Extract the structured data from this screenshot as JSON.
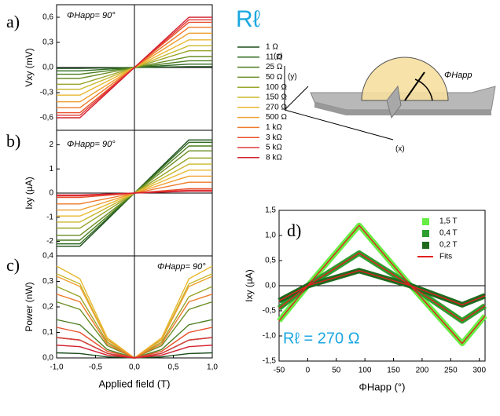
{
  "chart_data": [
    {
      "type": "line",
      "panel_label": "a)",
      "annotation": "ΦHapp= 90°",
      "y_label": "Vxy (mV)",
      "legend_title": "Rℓ",
      "x": [
        -1,
        -0.7,
        0,
        0.7,
        1
      ],
      "xlim": [
        -1,
        1
      ],
      "ylim": [
        -0.75,
        0.75
      ],
      "yticks": [
        {
          "value": -0.6,
          "label": "-0,6"
        },
        {
          "value": -0.3,
          "label": "-0,3"
        },
        {
          "value": 0,
          "label": "0,0"
        },
        {
          "value": 0.3,
          "label": "0,3"
        },
        {
          "value": 0.6,
          "label": "0,6"
        }
      ],
      "zero_lines": [
        "x",
        "y"
      ],
      "series": [
        {
          "name": "1 Ω",
          "color": "#1a4d1a",
          "values": [
            -0.01,
            -0.01,
            0,
            0.01,
            0.01
          ]
        },
        {
          "name": "11 Ω",
          "color": "#2e6b1e",
          "values": [
            -0.04,
            -0.04,
            0,
            0.04,
            0.04
          ]
        },
        {
          "name": "25 Ω",
          "color": "#4a7d1f",
          "values": [
            -0.08,
            -0.08,
            0,
            0.08,
            0.08
          ]
        },
        {
          "name": "50 Ω",
          "color": "#6b8e23",
          "values": [
            -0.13,
            -0.13,
            0,
            0.13,
            0.13
          ]
        },
        {
          "name": "100 Ω",
          "color": "#9aa52a",
          "values": [
            -0.2,
            -0.2,
            0,
            0.2,
            0.2
          ]
        },
        {
          "name": "150 Ω",
          "color": "#c9b82c",
          "values": [
            -0.26,
            -0.26,
            0,
            0.26,
            0.26
          ]
        },
        {
          "name": "270 Ω",
          "color": "#e8b830",
          "values": [
            -0.33,
            -0.33,
            0,
            0.33,
            0.33
          ]
        },
        {
          "name": "500 Ω",
          "color": "#f0a030",
          "values": [
            -0.41,
            -0.41,
            0,
            0.41,
            0.41
          ]
        },
        {
          "name": "1 kΩ",
          "color": "#ee7a2a",
          "values": [
            -0.48,
            -0.48,
            0,
            0.48,
            0.48
          ]
        },
        {
          "name": "3 kΩ",
          "color": "#e8502a",
          "values": [
            -0.54,
            -0.54,
            0,
            0.54,
            0.54
          ]
        },
        {
          "name": "5 kΩ",
          "color": "#e03a3a",
          "values": [
            -0.57,
            -0.57,
            0,
            0.57,
            0.57
          ]
        },
        {
          "name": "8 kΩ",
          "color": "#d42030",
          "values": [
            -0.6,
            -0.6,
            0,
            0.6,
            0.6
          ]
        }
      ]
    },
    {
      "type": "line",
      "panel_label": "b)",
      "annotation": "ΦHapp= 90°",
      "y_label": "Ixy (µA)",
      "x": [
        -1,
        -0.7,
        0,
        0.7,
        1
      ],
      "xlim": [
        -1,
        1
      ],
      "ylim": [
        -2.6,
        2.6
      ],
      "yticks": [
        -2,
        -1,
        0,
        1,
        2
      ],
      "zero_lines": [
        "x",
        "y"
      ],
      "series": [
        {
          "color": "#1a4d1a",
          "values": [
            -2.2,
            -2.2,
            0,
            2.2,
            2.2
          ]
        },
        {
          "color": "#2e6b1e",
          "values": [
            -2.1,
            -2.1,
            0,
            2.1,
            2.1
          ]
        },
        {
          "color": "#4a7d1f",
          "values": [
            -1.95,
            -1.95,
            0,
            1.95,
            1.95
          ]
        },
        {
          "color": "#6b8e23",
          "values": [
            -1.75,
            -1.75,
            0,
            1.75,
            1.75
          ]
        },
        {
          "color": "#9aa52a",
          "values": [
            -1.45,
            -1.45,
            0,
            1.45,
            1.45
          ]
        },
        {
          "color": "#c9b82c",
          "values": [
            -1.2,
            -1.2,
            0,
            1.2,
            1.2
          ]
        },
        {
          "color": "#e8b830",
          "values": [
            -0.95,
            -0.95,
            0,
            0.95,
            0.95
          ]
        },
        {
          "color": "#f0a030",
          "values": [
            -0.7,
            -0.7,
            0,
            0.7,
            0.7
          ]
        },
        {
          "color": "#ee7a2a",
          "values": [
            -0.45,
            -0.45,
            0,
            0.45,
            0.45
          ]
        },
        {
          "color": "#e8502a",
          "values": [
            -0.18,
            -0.18,
            0,
            0.18,
            0.18
          ]
        },
        {
          "color": "#e03a3a",
          "values": [
            -0.12,
            -0.12,
            0,
            0.12,
            0.12
          ]
        },
        {
          "color": "#d42030",
          "values": [
            -0.08,
            -0.08,
            0,
            0.08,
            0.08
          ]
        }
      ]
    },
    {
      "type": "line",
      "panel_label": "c)",
      "annotation": "ΦHapp= 90°",
      "y_label": "Power (nW)",
      "x_label": "Applied field (T)",
      "x": [
        -1,
        -0.7,
        -0.35,
        0,
        0.35,
        0.7,
        1
      ],
      "xlim": [
        -1,
        1
      ],
      "ylim": [
        0,
        0.4
      ],
      "xticks": [
        {
          "value": -1,
          "label": "-1,0"
        },
        {
          "value": -0.5,
          "label": "-0,5"
        },
        {
          "value": 0,
          "label": "0,0"
        },
        {
          "value": 0.5,
          "label": "0,5"
        },
        {
          "value": 1,
          "label": "1,0"
        }
      ],
      "yticks": [
        {
          "value": 0,
          "label": "0,0"
        },
        {
          "value": 0.1,
          "label": "0,1"
        },
        {
          "value": 0.2,
          "label": "0,2"
        },
        {
          "value": 0.3,
          "label": "0,3"
        },
        {
          "value": 0.4,
          "label": "0,4"
        }
      ],
      "zero_lines": [
        "x"
      ],
      "series": [
        {
          "color": "#1a4d1a",
          "values": [
            0.02,
            0.017,
            0.004,
            0,
            0.004,
            0.017,
            0.02
          ]
        },
        {
          "color": "#2e6b1e",
          "values": [
            0.08,
            0.07,
            0.018,
            0,
            0.018,
            0.07,
            0.08
          ]
        },
        {
          "color": "#4a7d1f",
          "values": [
            0.15,
            0.13,
            0.033,
            0,
            0.033,
            0.13,
            0.15
          ]
        },
        {
          "color": "#6b8e23",
          "values": [
            0.22,
            0.19,
            0.048,
            0,
            0.048,
            0.19,
            0.22
          ]
        },
        {
          "color": "#9aa52a",
          "values": [
            0.28,
            0.24,
            0.062,
            0,
            0.062,
            0.24,
            0.28
          ]
        },
        {
          "color": "#c9b82c",
          "values": [
            0.33,
            0.29,
            0.073,
            0,
            0.073,
            0.29,
            0.33
          ]
        },
        {
          "color": "#e8b830",
          "values": [
            0.36,
            0.31,
            0.079,
            0,
            0.079,
            0.31,
            0.36
          ]
        },
        {
          "color": "#f0a030",
          "values": [
            0.32,
            0.28,
            0.07,
            0,
            0.07,
            0.28,
            0.32
          ]
        },
        {
          "color": "#ee7a2a",
          "values": [
            0.25,
            0.22,
            0.055,
            0,
            0.055,
            0.22,
            0.25
          ]
        },
        {
          "color": "#e8502a",
          "values": [
            0.12,
            0.1,
            0.026,
            0,
            0.026,
            0.1,
            0.12
          ]
        },
        {
          "color": "#e03a3a",
          "values": [
            0.08,
            0.07,
            0.018,
            0,
            0.018,
            0.07,
            0.08
          ]
        },
        {
          "color": "#d42030",
          "values": [
            0.05,
            0.044,
            0.011,
            0,
            0.011,
            0.044,
            0.05
          ]
        }
      ]
    },
    {
      "type": "line",
      "panel_label": "d)",
      "annotation": "Rℓ = 270 Ω",
      "y_label": "Ixy (µA)",
      "x_label": "ΦHapp   (°)",
      "x": [
        -50,
        0,
        90,
        180,
        270,
        310
      ],
      "xlim": [
        -50,
        310
      ],
      "ylim": [
        -1.5,
        1.5
      ],
      "xticks": [
        -50,
        0,
        50,
        100,
        150,
        200,
        250,
        300
      ],
      "yticks": [
        {
          "value": -1.5,
          "label": "-1,5"
        },
        {
          "value": -1,
          "label": "-1,0"
        },
        {
          "value": -0.5,
          "label": "-0,5"
        },
        {
          "value": 0,
          "label": "0,0"
        },
        {
          "value": 0.5,
          "label": "0,5"
        },
        {
          "value": 1,
          "label": "1,0"
        },
        {
          "value": 1.5,
          "label": "1,5"
        }
      ],
      "zero_lines": [
        "y"
      ],
      "legend": "top-right",
      "series": [
        {
          "name": "1,5 T",
          "color": "#66ee44",
          "style": "band",
          "values": [
            -0.7,
            0,
            1.2,
            0,
            -1.15,
            -0.6
          ]
        },
        {
          "name": "0,4 T",
          "color": "#2e9e2e",
          "style": "band",
          "values": [
            -0.45,
            0,
            0.65,
            0,
            -0.7,
            -0.4
          ]
        },
        {
          "name": "0,2 T",
          "color": "#1e6b1e",
          "style": "band",
          "values": [
            -0.3,
            0,
            0.3,
            0,
            -0.38,
            -0.2
          ]
        },
        {
          "name": "Fits",
          "color": "#e02020",
          "style": "line",
          "values": [
            [
              -0.7,
              0,
              1.2,
              0,
              -1.15,
              -0.6
            ],
            [
              -0.45,
              0,
              0.65,
              0,
              -0.7,
              -0.4
            ],
            [
              -0.3,
              0,
              0.3,
              0,
              -0.38,
              -0.2
            ]
          ]
        }
      ]
    }
  ],
  "diagram": {
    "z": "(z)",
    "y": "(y)",
    "x": "(x)",
    "angle": "ΦHapp"
  }
}
